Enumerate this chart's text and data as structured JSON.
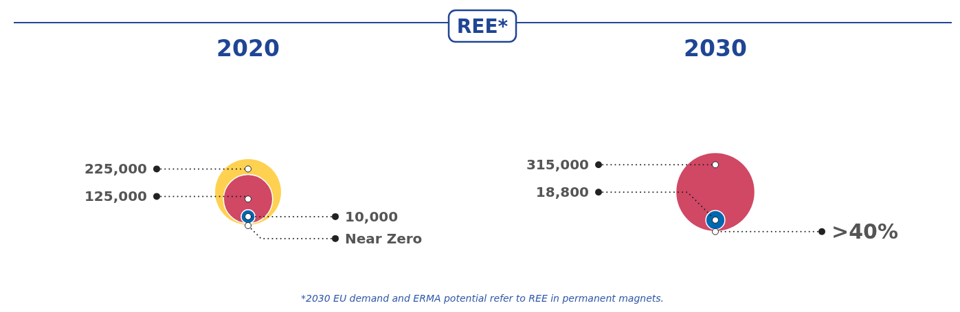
{
  "chart_data": {
    "type": "other",
    "title": "REE*",
    "categories": [
      "2020",
      "2030"
    ],
    "series": [
      {
        "color": "#fed151",
        "values": [
          225000,
          null
        ],
        "value_labels": [
          "225,000",
          null
        ]
      },
      {
        "color": "#d04864",
        "values": [
          125000,
          315000
        ],
        "value_labels": [
          "125,000",
          "315,000"
        ]
      },
      {
        "color": "#0067b1",
        "values": [
          10000,
          18800
        ],
        "value_labels": [
          "10,000",
          "18,800"
        ]
      },
      {
        "color": "#ffffff",
        "values": [
          null,
          null
        ],
        "value_labels": [
          "Near Zero",
          ">40%"
        ]
      }
    ],
    "annotations": [
      "*2030 EU demand and ERMA potential refer to REE in permanent magnets."
    ]
  }
}
